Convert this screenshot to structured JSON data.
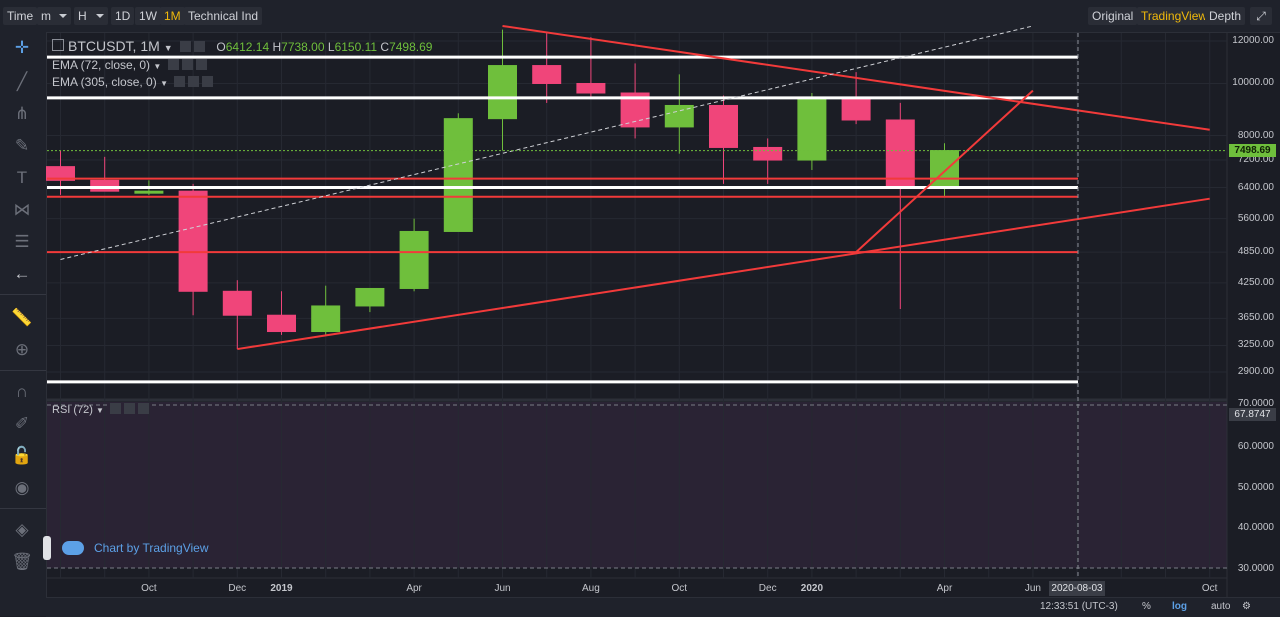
{
  "topbar": {
    "time_label": "Time",
    "minute_label": "m",
    "hour_label": "H",
    "day_label": "1D",
    "week_label": "1W",
    "month_label": "1M",
    "indicator_label": "Technical Ind",
    "original_label": "Original",
    "tradingview_label": "TradingView",
    "depth_label": "Depth",
    "active_interval": "1M",
    "active_view": "TradingView"
  },
  "legend": {
    "symbol": "BTCUSDT, 1M",
    "o_label": "O",
    "o_value": "6412.14",
    "h_label": "H",
    "h_value": "7738.00",
    "l_label": "L",
    "l_value": "6150.11",
    "c_label": "C",
    "c_value": "7498.69",
    "ema1": "EMA (72, close, 0)",
    "ema2": "EMA (305, close, 0)",
    "rsi": "RSI (72)"
  },
  "price_axis": {
    "last_price": "7498.69",
    "ticks": [
      "12000.00",
      "10000.00",
      "8000.00",
      "7200.00",
      "6400.00",
      "5600.00",
      "4850.00",
      "4250.00",
      "3650.00",
      "3250.00",
      "2900.00"
    ]
  },
  "rsi_axis": {
    "value": "67.8747",
    "ticks": [
      "70.0000",
      "60.0000",
      "50.0000",
      "40.0000",
      "30.0000"
    ]
  },
  "time_axis": {
    "ticks": [
      "Oct",
      "Dec",
      "2019",
      "Apr",
      "Jun",
      "Aug",
      "Oct",
      "Dec",
      "2020",
      "Apr",
      "Jun",
      "Oct"
    ],
    "crosshair_date": "2020-08-03"
  },
  "bottombar": {
    "clock": "12:33:51 (UTC-3)",
    "percent_label": "%",
    "log_label": "log",
    "auto_label": "auto"
  },
  "watermark": "Chart by TradingView",
  "colors": {
    "up": "#6fbf3c",
    "down": "#f0457a",
    "trend_line": "#f23a3a",
    "level_line": "#ffffff",
    "accent": "#f0b90b"
  },
  "chart_data": {
    "type": "candlestick",
    "symbol": "BTCUSDT",
    "interval": "1M",
    "yscale": "log",
    "ylim": [
      2700,
      12600
    ],
    "candles": [
      {
        "t": "2018-08",
        "o": 7000,
        "h": 7500,
        "l": 6200,
        "c": 6600
      },
      {
        "t": "2018-09",
        "o": 6600,
        "h": 7300,
        "l": 6300,
        "c": 6300
      },
      {
        "t": "2018-10",
        "o": 6300,
        "h": 6600,
        "l": 6200,
        "c": 6300
      },
      {
        "t": "2018-11",
        "o": 6300,
        "h": 6500,
        "l": 3700,
        "c": 4100
      },
      {
        "t": "2018-12",
        "o": 4100,
        "h": 4300,
        "l": 3200,
        "c": 3700
      },
      {
        "t": "2019-01",
        "o": 3700,
        "h": 4100,
        "l": 3400,
        "c": 3450
      },
      {
        "t": "2019-02",
        "o": 3450,
        "h": 4200,
        "l": 3400,
        "c": 3850
      },
      {
        "t": "2019-03",
        "o": 3850,
        "h": 4150,
        "l": 3750,
        "c": 4150
      },
      {
        "t": "2019-04",
        "o": 4150,
        "h": 5600,
        "l": 4100,
        "c": 5300
      },
      {
        "t": "2019-05",
        "o": 5300,
        "h": 8800,
        "l": 5300,
        "c": 8600
      },
      {
        "t": "2019-06",
        "o": 8600,
        "h": 12600,
        "l": 7500,
        "c": 10800
      },
      {
        "t": "2019-07",
        "o": 10800,
        "h": 12400,
        "l": 9200,
        "c": 10000
      },
      {
        "t": "2019-08",
        "o": 10000,
        "h": 12200,
        "l": 9400,
        "c": 9600
      },
      {
        "t": "2019-09",
        "o": 9600,
        "h": 10900,
        "l": 7900,
        "c": 8300
      },
      {
        "t": "2019-10",
        "o": 8300,
        "h": 10400,
        "l": 7400,
        "c": 9100
      },
      {
        "t": "2019-11",
        "o": 9100,
        "h": 9500,
        "l": 6500,
        "c": 7600
      },
      {
        "t": "2019-12",
        "o": 7600,
        "h": 7900,
        "l": 6500,
        "c": 7200
      },
      {
        "t": "2020-01",
        "o": 7200,
        "h": 9600,
        "l": 6900,
        "c": 9350
      },
      {
        "t": "2020-02",
        "o": 9350,
        "h": 10500,
        "l": 8400,
        "c": 8550
      },
      {
        "t": "2020-03",
        "o": 8550,
        "h": 9200,
        "l": 3800,
        "c": 6400
      },
      {
        "t": "2020-04",
        "o": 6412.14,
        "h": 7738,
        "l": 6150.11,
        "c": 7498.69
      }
    ],
    "horizontal_levels": [
      {
        "price": 11200,
        "color": "white"
      },
      {
        "price": 9400,
        "color": "white"
      },
      {
        "price": 6400,
        "color": "white"
      },
      {
        "price": 2780,
        "color": "white"
      },
      {
        "price": 6650,
        "color": "red"
      },
      {
        "price": 6150,
        "color": "red"
      },
      {
        "price": 4850,
        "color": "red"
      }
    ],
    "trend_lines": [
      {
        "from": [
          "2019-06",
          12800
        ],
        "to": [
          "2020-10",
          8200
        ],
        "color": "red",
        "style": "solid"
      },
      {
        "from": [
          "2018-12",
          3200
        ],
        "to": [
          "2020-10",
          6100
        ],
        "color": "red",
        "style": "solid"
      },
      {
        "from": [
          "2020-02",
          4850
        ],
        "to": [
          "2020-06",
          9700
        ],
        "color": "red",
        "style": "solid"
      },
      {
        "from": [
          "2018-08",
          4700
        ],
        "to": [
          "2020-06",
          12800
        ],
        "color": "white",
        "style": "dashed"
      }
    ],
    "rsi": {
      "period": 72,
      "value": 67.8747,
      "ylim": [
        30,
        70
      ]
    },
    "legend_position": "top-left"
  }
}
